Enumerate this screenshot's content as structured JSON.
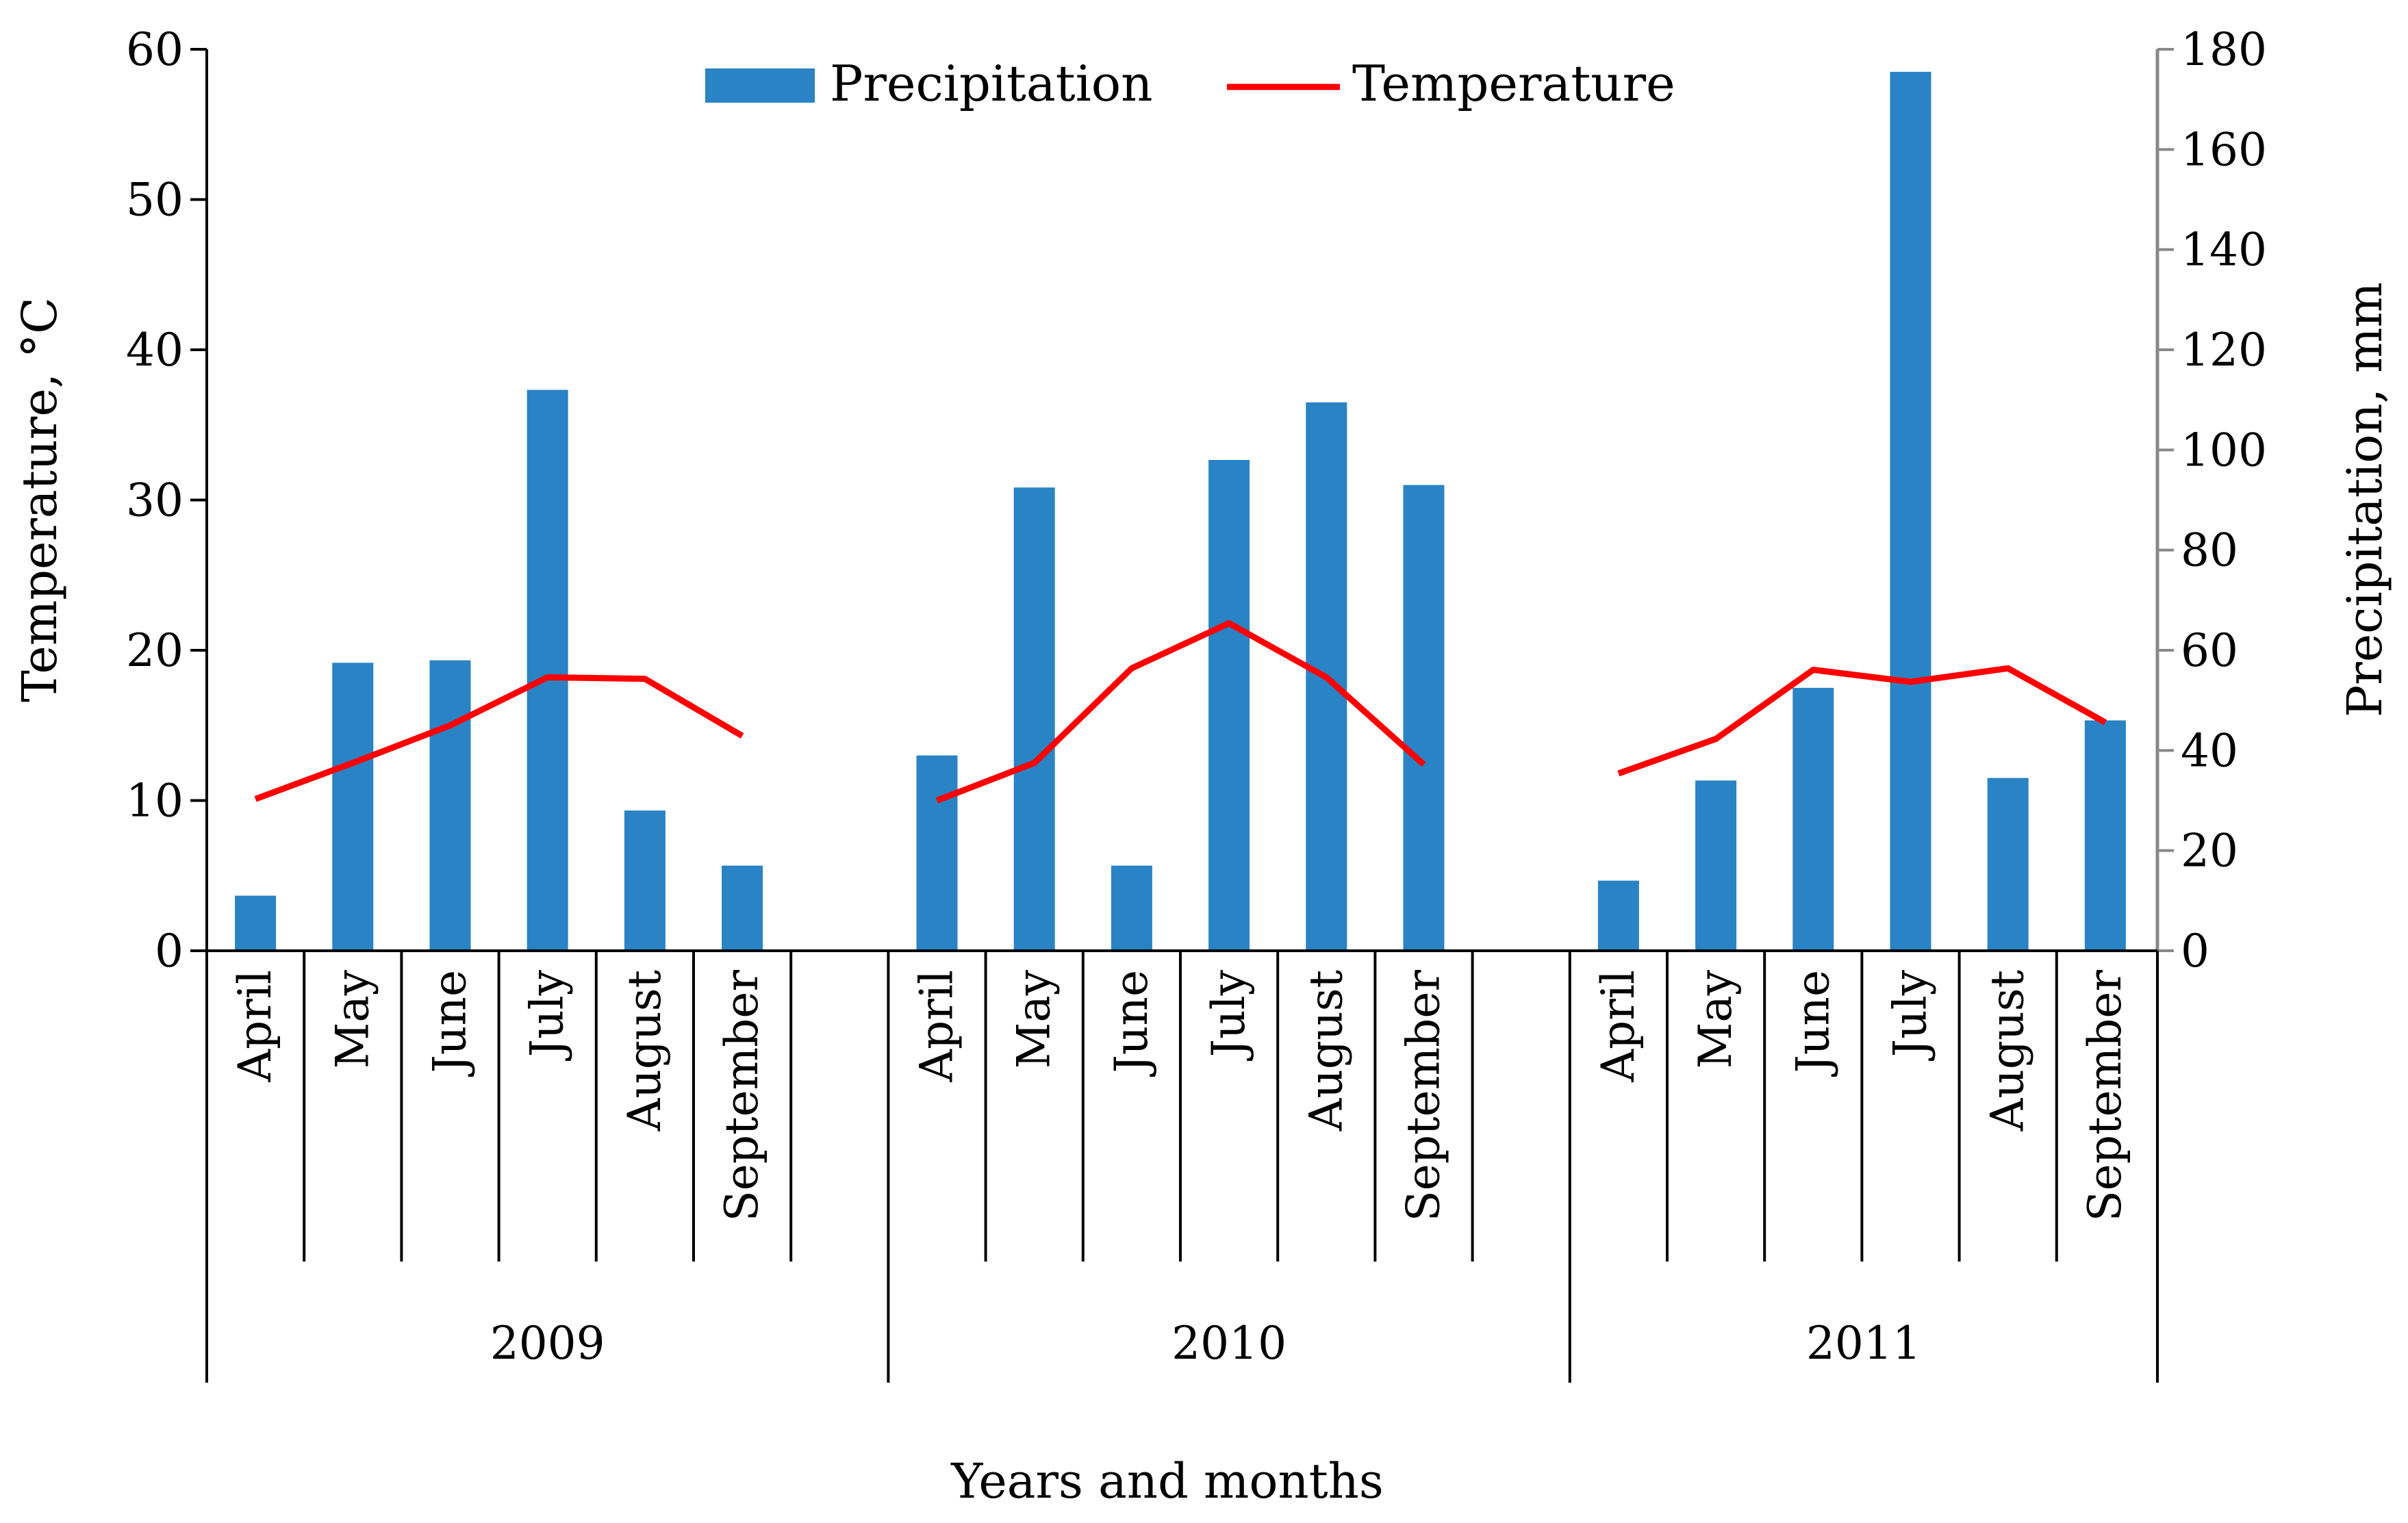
{
  "chart_data": {
    "type": "bar+line",
    "xlabel": "Years and months",
    "ylabel_left": "Temperature, °C",
    "ylabel_right": "Precipitation, mm",
    "ylim_left": [
      0,
      60
    ],
    "yticks_left": [
      0,
      10,
      20,
      30,
      40,
      50,
      60
    ],
    "ylim_right": [
      0,
      180
    ],
    "yticks_right": [
      0,
      20,
      40,
      60,
      80,
      100,
      120,
      140,
      160,
      180
    ],
    "grid": false,
    "legend": {
      "position": "top-center",
      "entries": [
        "Precipitation",
        "Temperature"
      ]
    },
    "groups": [
      {
        "year": "2009",
        "months": [
          "April",
          "May",
          "June",
          "July",
          "August",
          "September"
        ]
      },
      {
        "year": "2010",
        "months": [
          "April",
          "May",
          "June",
          "July",
          "August",
          "September"
        ]
      },
      {
        "year": "2011",
        "months": [
          "April",
          "May",
          "June",
          "July",
          "August",
          "September"
        ]
      }
    ],
    "series": [
      {
        "name": "Precipitation",
        "kind": "bar",
        "axis": "right",
        "color": "#2a83c4",
        "values": [
          [
            11,
            57.5,
            58,
            112,
            28,
            17
          ],
          [
            39,
            92.5,
            17,
            98,
            109.5,
            93
          ],
          [
            14,
            34,
            52.5,
            175.5,
            34.5,
            46
          ]
        ]
      },
      {
        "name": "Temperature",
        "kind": "line",
        "axis": "left",
        "color": "#ff0000",
        "values": [
          [
            10.1,
            12.5,
            15,
            18.2,
            18.1,
            14.3
          ],
          [
            10,
            12.5,
            18.8,
            21.8,
            18.2,
            12.4
          ],
          [
            11.8,
            14.1,
            18.7,
            17.9,
            18.8,
            15.2
          ]
        ]
      }
    ]
  }
}
